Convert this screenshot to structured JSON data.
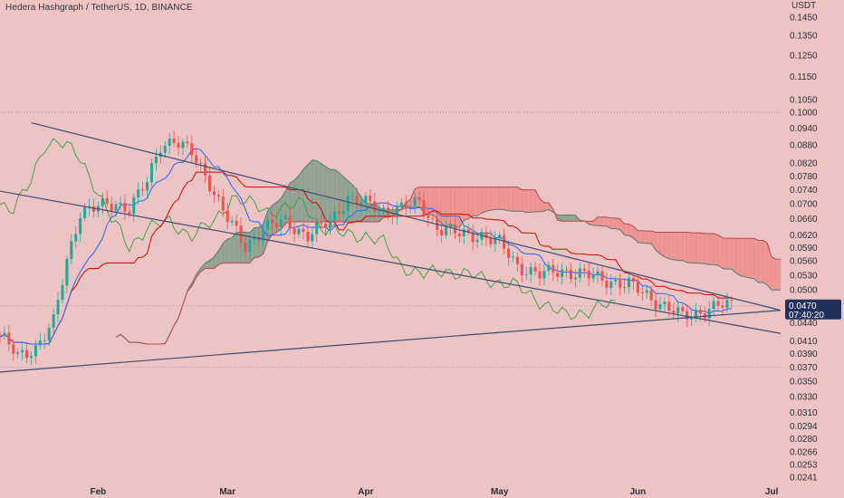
{
  "header": {
    "title": "Hedera Hashgraph / TetherUS, 1D, BINANCE"
  },
  "price_badge": {
    "price": "0.0470",
    "countdown": "07:40:20"
  },
  "chart_data": {
    "type": "candlestick",
    "symbol": "Hedera Hashgraph / TetherUS",
    "interval": "1D",
    "exchange": "BINANCE",
    "currency": "USDT",
    "y_scale": "log",
    "ylim": [
      0.024,
      0.155
    ],
    "xlim": [
      "2024-01-10",
      "2024-07-03"
    ],
    "y_ticks": [
      "0.1450",
      "0.1350",
      "0.1250",
      "0.1150",
      "0.1050",
      "0.1000",
      "0.0940",
      "0.0880",
      "0.0820",
      "0.0780",
      "0.0740",
      "0.0700",
      "0.0660",
      "0.0620",
      "0.0590",
      "0.0560",
      "0.0530",
      "0.0500",
      "0.0440",
      "0.0410",
      "0.0390",
      "0.0370",
      "0.0350",
      "0.0330",
      "0.0310",
      "0.0294",
      "0.0280",
      "0.0266",
      "0.0253",
      "0.0241"
    ],
    "x_ticks": [
      {
        "label": "Feb",
        "date": "2024-02-01"
      },
      {
        "label": "Mar",
        "date": "2024-03-01"
      },
      {
        "label": "Apr",
        "date": "2024-04-01"
      },
      {
        "label": "May",
        "date": "2024-05-01"
      },
      {
        "label": "Jun",
        "date": "2024-06-01"
      },
      {
        "label": "Jul",
        "date": "2024-07-01"
      }
    ],
    "last_price": 0.047,
    "dotted_levels": [
      0.1,
      0.047,
      0.037
    ],
    "trendlines": [
      {
        "name": "upper",
        "points": [
          [
            "2024-01-17",
            0.096
          ],
          [
            "2024-07-03",
            0.0462
          ]
        ]
      },
      {
        "name": "lower",
        "points": [
          [
            "2024-01-08",
            0.074
          ],
          [
            "2024-07-03",
            0.0422
          ]
        ]
      },
      {
        "name": "support",
        "points": [
          [
            "2024-01-08",
            0.0362
          ],
          [
            "2024-07-03",
            0.0462
          ]
        ]
      }
    ],
    "colors": {
      "background": "#ecc4c4",
      "up_candle": "#26a69a",
      "down_candle": "#ef5350",
      "conversion_line": "#2962ff",
      "base_line": "#d50000",
      "lagging_span": "#43a047",
      "kumo_bullish": "#7a9a86",
      "kumo_bearish": "#f07f7f",
      "trendline": "#3d4c72",
      "price_badge": "#22315a"
    }
  }
}
